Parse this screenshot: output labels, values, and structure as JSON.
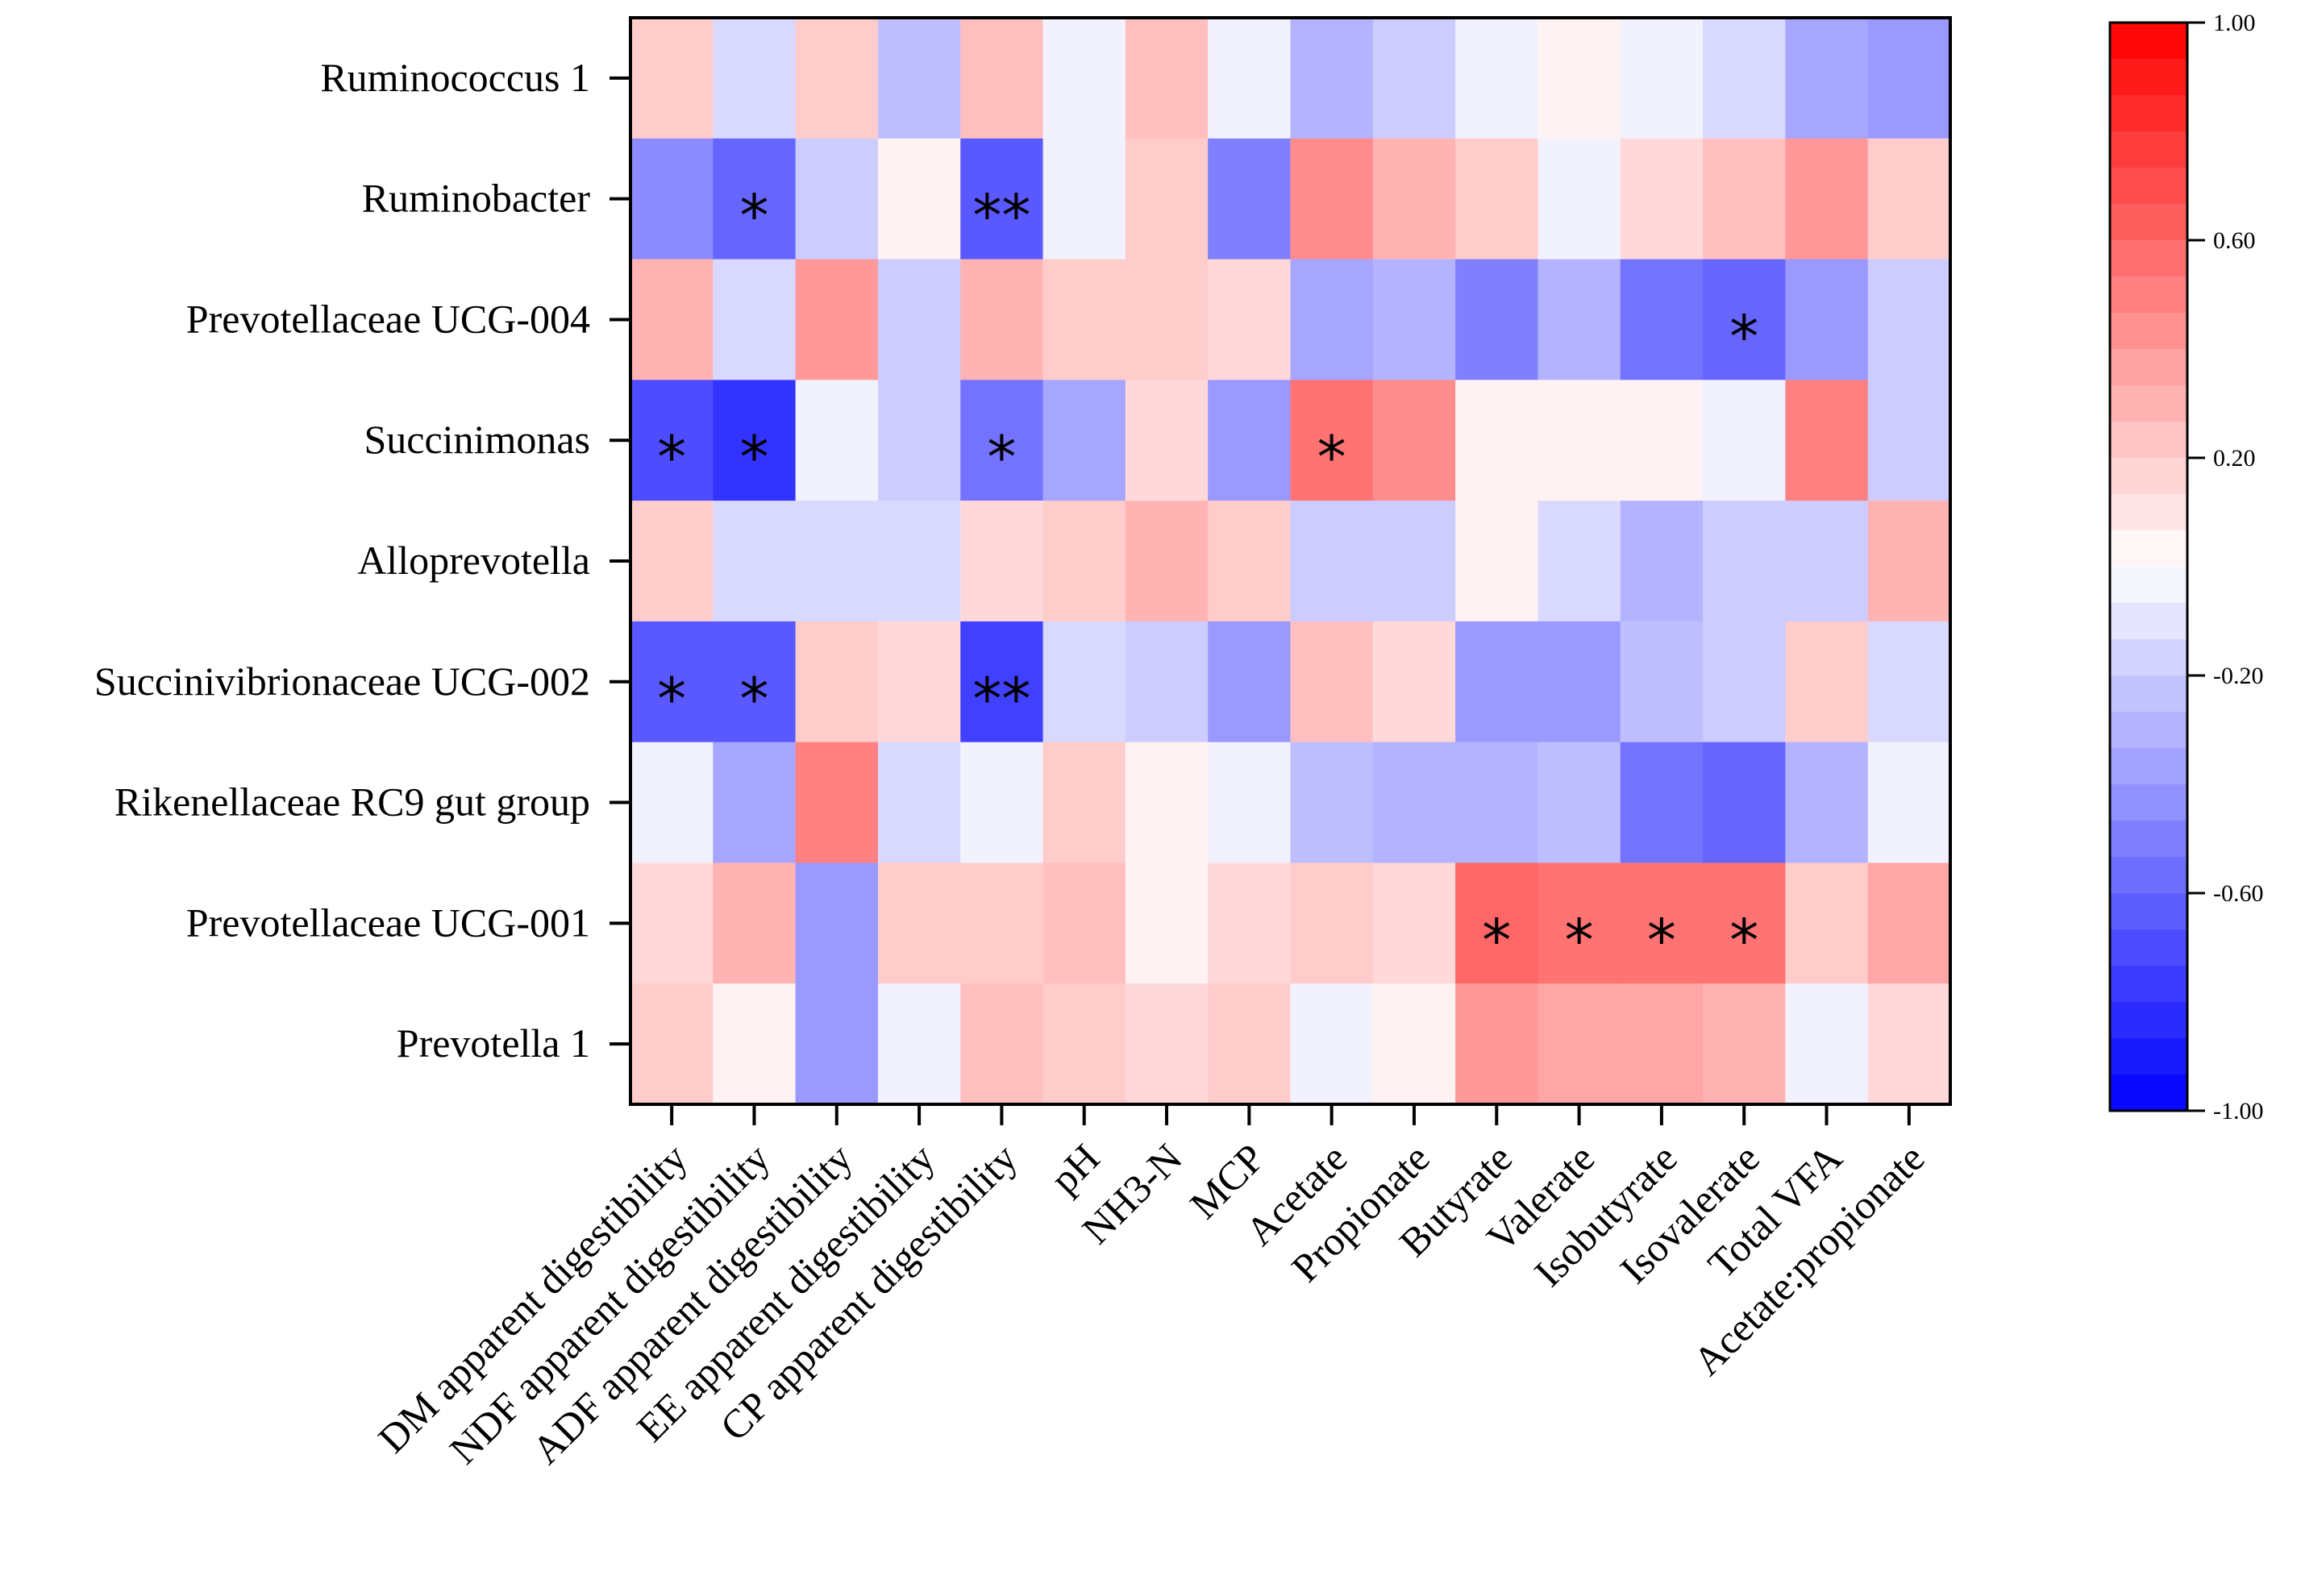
{
  "chart_data": {
    "type": "heatmap",
    "rows": [
      "Ruminococcus 1",
      "Ruminobacter",
      "Prevotellaceae UCG-004",
      "Succinimonas",
      "Alloprevotella",
      "Succinivibrionaceae UCG-002",
      "Rikenellaceae RC9 gut group",
      "Prevotellaceae UCG-001",
      "Prevotella 1"
    ],
    "columns": [
      "DM apparent digestibility",
      "NDF apparent digestibility",
      "ADF apparent digestibility",
      "EE apparent digestibility",
      "CP apparent digestibility",
      "pH",
      "NH3-N",
      "MCP",
      "Acetate",
      "Propionate",
      "Butyrate",
      "Valerate",
      "Isobutyrate",
      "Isovalerate",
      "Total VFA",
      "Acetate:propionate"
    ],
    "values": [
      [
        0.2,
        -0.15,
        0.2,
        -0.25,
        0.25,
        -0.05,
        0.25,
        -0.05,
        -0.3,
        -0.2,
        -0.05,
        0.05,
        -0.05,
        -0.15,
        -0.35,
        -0.4
      ],
      [
        -0.45,
        -0.6,
        -0.2,
        0.05,
        -0.65,
        -0.05,
        0.2,
        -0.5,
        0.45,
        0.3,
        0.2,
        -0.05,
        0.15,
        0.25,
        0.4,
        0.2
      ],
      [
        0.3,
        -0.15,
        0.4,
        -0.2,
        0.3,
        0.2,
        0.2,
        0.15,
        -0.35,
        -0.3,
        -0.5,
        -0.3,
        -0.55,
        -0.6,
        -0.4,
        -0.2
      ],
      [
        -0.7,
        -0.8,
        -0.05,
        -0.2,
        -0.55,
        -0.35,
        0.15,
        -0.4,
        0.55,
        0.45,
        0.05,
        0.05,
        0.05,
        -0.05,
        0.5,
        -0.2
      ],
      [
        0.2,
        -0.15,
        -0.15,
        -0.15,
        0.15,
        0.2,
        0.3,
        0.2,
        -0.2,
        -0.2,
        0.05,
        -0.15,
        -0.3,
        -0.2,
        -0.2,
        0.3
      ],
      [
        -0.65,
        -0.65,
        0.2,
        0.15,
        -0.75,
        -0.15,
        -0.2,
        -0.4,
        0.25,
        0.15,
        -0.4,
        -0.4,
        -0.25,
        -0.2,
        0.2,
        -0.15
      ],
      [
        -0.05,
        -0.35,
        0.5,
        -0.15,
        -0.05,
        0.2,
        0.05,
        -0.05,
        -0.25,
        -0.3,
        -0.3,
        -0.25,
        -0.55,
        -0.6,
        -0.3,
        -0.05
      ],
      [
        0.15,
        0.3,
        -0.4,
        0.2,
        0.2,
        0.25,
        0.05,
        0.15,
        0.2,
        0.15,
        0.6,
        0.55,
        0.55,
        0.55,
        0.2,
        0.35
      ],
      [
        0.2,
        0.05,
        -0.4,
        -0.05,
        0.25,
        0.2,
        0.15,
        0.2,
        -0.05,
        0.05,
        0.4,
        0.35,
        0.35,
        0.3,
        -0.05,
        0.15
      ]
    ],
    "significance": [
      [
        "",
        "",
        "",
        "",
        "",
        "",
        "",
        "",
        "",
        "",
        "",
        "",
        "",
        "",
        "",
        ""
      ],
      [
        "",
        "*",
        "",
        "",
        "**",
        "",
        "",
        "",
        "",
        "",
        "",
        "",
        "",
        "",
        "",
        ""
      ],
      [
        "",
        "",
        "",
        "",
        "",
        "",
        "",
        "",
        "",
        "",
        "",
        "",
        "",
        "*",
        "",
        ""
      ],
      [
        "*",
        "*",
        "",
        "",
        "*",
        "",
        "",
        "",
        "*",
        "",
        "",
        "",
        "",
        "",
        "",
        ""
      ],
      [
        "",
        "",
        "",
        "",
        "",
        "",
        "",
        "",
        "",
        "",
        "",
        "",
        "",
        "",
        "",
        ""
      ],
      [
        "*",
        "*",
        "",
        "",
        "**",
        "",
        "",
        "",
        "",
        "",
        "",
        "",
        "",
        "",
        "",
        ""
      ],
      [
        "",
        "",
        "",
        "",
        "",
        "",
        "",
        "",
        "",
        "",
        "",
        "",
        "",
        "",
        "",
        ""
      ],
      [
        "",
        "",
        "",
        "",
        "",
        "",
        "",
        "",
        "",
        "",
        "*",
        "*",
        "*",
        "*",
        "",
        ""
      ],
      [
        "",
        "",
        "",
        "",
        "",
        "",
        "",
        "",
        "",
        "",
        "",
        "",
        "",
        "",
        "",
        ""
      ]
    ],
    "color_scale": {
      "min": -1.0,
      "max": 1.0,
      "low_color": "#0000ff",
      "mid_color": "#ffffff",
      "high_color": "#ff0000",
      "tick_values": [
        1.0,
        0.6,
        0.2,
        -0.2,
        -0.6,
        -1.0
      ],
      "tick_labels": [
        "1.00",
        "0.60",
        "0.20",
        "-0.20",
        "-0.60",
        "-1.00"
      ]
    },
    "legend_position": "right"
  }
}
